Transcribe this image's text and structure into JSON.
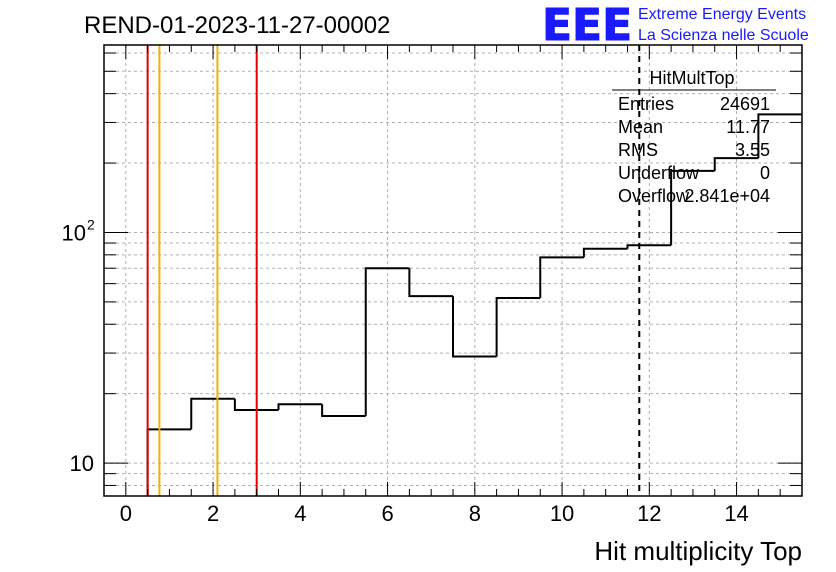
{
  "title": "REND-01-2023-11-27-00002",
  "logo": {
    "mark": "EEE",
    "line1": "Extreme Energy Events",
    "line2": "La Scienza nelle Scuole",
    "color": "#1a1aff"
  },
  "stats_box": {
    "name": "HitMultTop",
    "rows": [
      {
        "label": "Entries",
        "value": "24691"
      },
      {
        "label": "Mean",
        "value": "11.77"
      },
      {
        "label": "RMS",
        "value": "3.55"
      },
      {
        "label": "Underflow",
        "value": "0"
      },
      {
        "label": "Overflow",
        "value": "2.841e+04"
      }
    ]
  },
  "chart_data": {
    "type": "histogram",
    "title": "REND-01-2023-11-27-00002",
    "xlabel": "Hit multiplicity Top",
    "ylabel": "",
    "xlim": [
      -0.5,
      15.5
    ],
    "ylim": [
      7.2,
      650
    ],
    "yscale": "log",
    "grid": true,
    "x_ticks": [
      0,
      2,
      4,
      6,
      8,
      10,
      12,
      14
    ],
    "y_tick_labels": [
      {
        "value": 10,
        "base": "10",
        "exp": ""
      },
      {
        "value": 100,
        "base": "10",
        "exp": "2"
      }
    ],
    "bin_edges": [
      0.5,
      1.5,
      2.5,
      3.5,
      4.5,
      5.5,
      6.5,
      7.5,
      8.5,
      9.5,
      10.5,
      11.5,
      12.5,
      13.5,
      14.5,
      15.5
    ],
    "counts": [
      14,
      19,
      17,
      18,
      16,
      70,
      53,
      29,
      52,
      78,
      85,
      88,
      185,
      210,
      325
    ],
    "lines": [
      {
        "x": 0.5,
        "color": "#e00000",
        "style": "solid"
      },
      {
        "x": 3.0,
        "color": "#e00000",
        "style": "solid"
      },
      {
        "x": 0.77,
        "color": "#f0b400",
        "style": "solid"
      },
      {
        "x": 2.1,
        "color": "#f0b400",
        "style": "solid"
      },
      {
        "x": 11.77,
        "color": "#000000",
        "style": "dashed"
      }
    ]
  }
}
